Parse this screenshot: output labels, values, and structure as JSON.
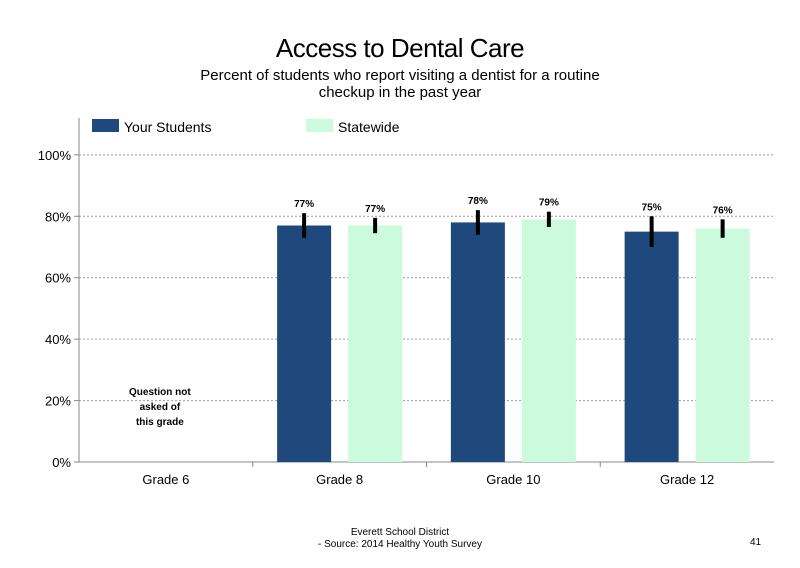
{
  "title": "Access to Dental Care",
  "subtitle": "Percent of students who report visiting a dentist for a routine checkup in the past year",
  "footer": {
    "line1": "Everett School District",
    "line2": "- Source: 2014 Healthy Youth Survey",
    "page": "41"
  },
  "colors": {
    "your_students": "#1f497d",
    "statewide": "#ccfadc"
  },
  "chart_data": {
    "type": "bar",
    "categories": [
      "Grade 6",
      "Grade 8",
      "Grade 10",
      "Grade 12"
    ],
    "series": [
      {
        "name": "Your Students",
        "values": [
          null,
          77,
          78,
          75
        ],
        "labels": [
          "",
          "77%",
          "78%",
          "75%"
        ],
        "error": [
          null,
          [
            73,
            81
          ],
          [
            74,
            82
          ],
          [
            70,
            80
          ]
        ]
      },
      {
        "name": "Statewide",
        "values": [
          null,
          77,
          79,
          76
        ],
        "labels": [
          "",
          "77%",
          "79%",
          "76%"
        ],
        "error": [
          null,
          [
            74.5,
            79.5
          ],
          [
            76.5,
            81.5
          ],
          [
            73,
            79
          ]
        ]
      }
    ],
    "note": "Question not asked of this grade",
    "yticks": [
      "0%",
      "20%",
      "40%",
      "60%",
      "80%",
      "100%"
    ],
    "ylim": [
      0,
      112
    ],
    "grid": "dotted horizontal",
    "legend": "top"
  }
}
